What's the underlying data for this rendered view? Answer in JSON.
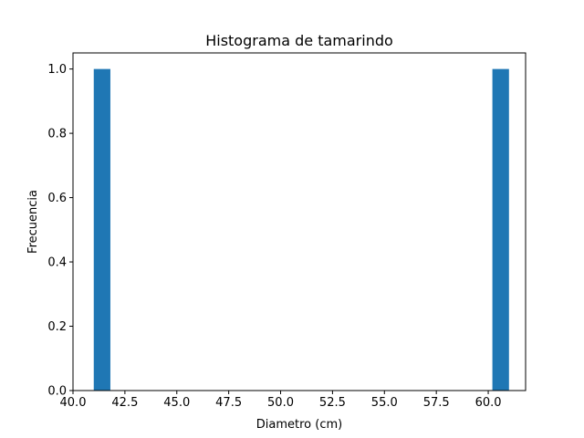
{
  "chart_data": {
    "type": "bar",
    "title": "Histograma de tamarindo",
    "xlabel": "Diametro (cm)",
    "ylabel": "Frecuencia",
    "bin_width": 0.8,
    "bins": [
      {
        "x_start": 41.0,
        "x_end": 41.8,
        "count": 1
      },
      {
        "x_start": 60.2,
        "x_end": 61.0,
        "count": 1
      }
    ],
    "xlim": [
      40.0,
      61.8
    ],
    "ylim": [
      0.0,
      1.05
    ],
    "xticks": [
      40.0,
      42.5,
      45.0,
      47.5,
      50.0,
      52.5,
      55.0,
      57.5,
      60.0
    ],
    "xtick_labels": [
      "40.0",
      "42.5",
      "45.0",
      "47.5",
      "50.0",
      "52.5",
      "55.0",
      "57.5",
      "60.0"
    ],
    "yticks": [
      0.0,
      0.2,
      0.4,
      0.6,
      0.8,
      1.0
    ],
    "ytick_labels": [
      "0.0",
      "0.2",
      "0.4",
      "0.6",
      "0.8",
      "1.0"
    ],
    "bar_color": "#1f77b4",
    "grid": false,
    "legend": "none"
  }
}
